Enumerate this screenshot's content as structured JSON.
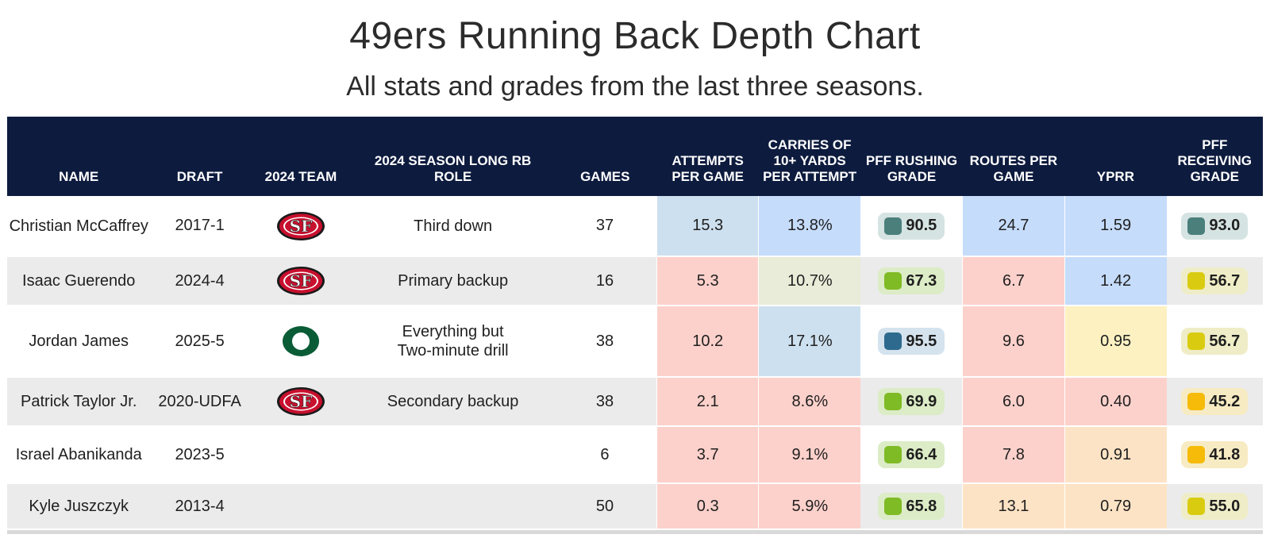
{
  "title": "49ers Running Back Depth Chart",
  "subtitle": "All stats and grades from the last three seasons.",
  "chart_data": {
    "type": "table",
    "columns": [
      "NAME",
      "DRAFT",
      "2024 TEAM",
      "2024 SEASON LONG RB ROLE",
      "GAMES",
      "ATTEMPTS PER GAME",
      "CARRIES OF 10+ YARDS PER ATTEMPT",
      "PFF RUSHING GRADE",
      "ROUTES PER GAME",
      "YPRR",
      "PFF RECEIVING GRADE"
    ],
    "rows": [
      {
        "name": "Christian McCaffrey",
        "draft": "2017-1",
        "team": "SF",
        "role": "Third down",
        "games": "37",
        "att": "15.3",
        "carries10": "13.8%",
        "rush_grade": "90.5",
        "routes": "24.7",
        "yprr": "1.59",
        "rec_grade": "93.0"
      },
      {
        "name": "Isaac Guerendo",
        "draft": "2024-4",
        "team": "SF",
        "role": "Primary backup",
        "games": "16",
        "att": "5.3",
        "carries10": "10.7%",
        "rush_grade": "67.3",
        "routes": "6.7",
        "yprr": "1.42",
        "rec_grade": "56.7"
      },
      {
        "name": "Jordan James",
        "draft": "2025-5",
        "team": "ORE",
        "role": "Everything but Two-minute drill",
        "games": "38",
        "att": "10.2",
        "carries10": "17.1%",
        "rush_grade": "95.5",
        "routes": "9.6",
        "yprr": "0.95",
        "rec_grade": "56.7"
      },
      {
        "name": "Patrick Taylor Jr.",
        "draft": "2020-UDFA",
        "team": "SF",
        "role": "Secondary backup",
        "games": "38",
        "att": "2.1",
        "carries10": "8.6%",
        "rush_grade": "69.9",
        "routes": "6.0",
        "yprr": "0.40",
        "rec_grade": "45.2"
      },
      {
        "name": "Israel Abanikanda",
        "draft": "2023-5",
        "team": "",
        "role": "",
        "games": "6",
        "att": "3.7",
        "carries10": "9.1%",
        "rush_grade": "66.4",
        "routes": "7.8",
        "yprr": "0.91",
        "rec_grade": "41.8"
      },
      {
        "name": "Kyle Juszczyk",
        "draft": "2013-4",
        "team": "",
        "role": "",
        "games": "50",
        "att": "0.3",
        "carries10": "5.9%",
        "rush_grade": "65.8",
        "routes": "13.1",
        "yprr": "0.79",
        "rec_grade": "55.0"
      }
    ]
  },
  "colors": {
    "header_bg": "#0d1b3e",
    "heat_blue_strong": "#c5dcfb",
    "heat_blue": "#cde0ef",
    "heat_green_pale": "#e8ecd8",
    "heat_yellow": "#fdf1c2",
    "heat_orange": "#fde3c5",
    "heat_red": "#fdd1cb",
    "heat_red_strong": "#fcc8c5",
    "grade_teal": "#4a7f7c",
    "grade_blue": "#2e6a8e",
    "grade_green": "#7fbb25",
    "grade_yellow": "#d9cc10",
    "grade_orange": "#f5bb08"
  }
}
